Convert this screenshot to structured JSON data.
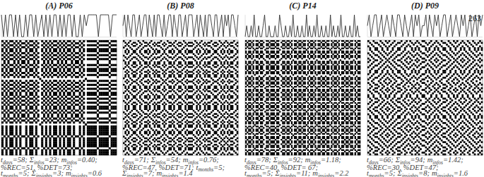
{
  "chart_data": [
    {
      "type": "recurrence",
      "title": "(A) P06",
      "ylim": [
        0,
        2
      ],
      "tick_labels": false,
      "color": "#000000",
      "values": [
        2,
        0,
        2,
        0,
        2,
        2,
        0,
        2,
        0,
        2,
        0,
        0,
        2,
        0,
        2,
        2,
        0,
        2,
        0,
        1,
        2,
        0,
        2,
        0,
        2,
        0,
        2,
        2,
        0,
        2,
        0,
        2,
        0,
        2,
        2,
        0,
        2,
        0,
        0,
        2,
        0,
        2,
        1,
        2,
        2,
        2,
        2,
        2,
        0,
        2,
        2,
        2,
        2,
        2,
        0,
        2,
        2,
        2
      ],
      "stats": [
        [
          {
            "symbol": "t",
            "sub": "days",
            "op": "=",
            "value": 58,
            "end": ";"
          },
          {
            "symbol": "Σ",
            "sub": "infos",
            "op": "=",
            "value": 23,
            "end": ";"
          },
          {
            "symbol": "m",
            "sub": "infos",
            "op": "=",
            "value": 0.4,
            "label": "0.40",
            "end": ";"
          }
        ],
        [
          {
            "symbol": "%REC",
            "op": "=",
            "value": 51,
            "end": ","
          },
          {
            "symbol": "%DET",
            "op": "=",
            "value": 73,
            "end": ";"
          }
        ],
        [
          {
            "symbol": "t",
            "sub": "months",
            "op": "=",
            "value": 5,
            "end": ";"
          },
          {
            "symbol": "Σ",
            "sub": "insights",
            "op": "=",
            "value": 3,
            "end": ";"
          },
          {
            "symbol": "m",
            "sub": "insights",
            "op": "=",
            "value": 0.6
          }
        ]
      ]
    },
    {
      "type": "recurrence",
      "title": "(B) P08",
      "ylim": [
        0,
        2
      ],
      "tick_labels": false,
      "color": "#000000",
      "values": [
        1,
        2,
        0,
        2,
        1,
        0,
        2,
        2,
        0,
        1,
        2,
        0,
        1,
        2,
        2,
        0,
        2,
        1,
        0,
        2,
        0,
        2,
        2,
        1,
        0,
        2,
        0,
        1,
        2,
        2,
        0,
        2,
        1,
        0,
        2,
        2,
        0,
        1,
        2,
        0,
        2,
        2,
        2,
        0,
        1,
        2,
        0,
        2,
        1,
        0,
        2,
        0,
        2,
        2,
        1,
        0,
        2,
        2,
        0,
        1,
        2,
        0,
        2,
        1,
        2,
        0,
        2,
        2,
        1,
        0,
        2
      ],
      "stats": [
        [
          {
            "symbol": "t",
            "sub": "days",
            "op": "=",
            "value": 71,
            "end": ";"
          },
          {
            "symbol": "Σ",
            "sub": "infos",
            "op": "=",
            "value": 54,
            "end": ";"
          },
          {
            "symbol": "m",
            "sub": "infos",
            "op": "=",
            "value": 0.76,
            "end": ";"
          }
        ],
        [
          {
            "symbol": "%REC",
            "op": "=",
            "value": 47,
            "end": ","
          },
          {
            "symbol": "%DET",
            "op": "=",
            "value": 71,
            "end": ";"
          },
          {
            "symbol": "t",
            "sub": "months",
            "op": "=",
            "value": 5,
            "end": ";"
          }
        ],
        [
          {
            "symbol": "Σ",
            "sub": "insights",
            "op": "=",
            "value": 7,
            "end": ";"
          },
          {
            "symbol": "m",
            "sub": "insights",
            "op": "=",
            "value": 1.4
          }
        ]
      ]
    },
    {
      "type": "recurrence",
      "title": "(C) P14",
      "ylim": [
        0,
        2
      ],
      "tick_labels": false,
      "color": "#000000",
      "values": [
        0,
        1,
        0,
        0,
        1,
        0,
        2,
        0,
        0,
        1,
        0,
        0,
        1,
        2,
        0,
        0,
        1,
        0,
        0,
        0,
        1,
        0,
        0,
        2,
        1,
        0,
        0,
        1,
        0,
        0,
        1,
        0,
        2,
        0,
        0,
        1,
        0,
        0,
        1,
        0,
        0,
        2,
        0,
        1,
        0,
        0,
        1,
        0,
        2,
        0,
        0,
        1,
        0,
        0,
        1,
        0,
        0,
        2,
        0,
        1,
        0,
        0,
        1,
        0,
        2,
        0,
        0,
        1,
        0,
        0,
        1,
        0,
        0,
        2,
        0,
        1,
        0,
        0
      ],
      "stats": [
        [
          {
            "symbol": "t",
            "sub": "days",
            "op": "=",
            "value": 78,
            "end": ";"
          },
          {
            "symbol": "Σ",
            "sub": "infos",
            "op": "=",
            "value": 92,
            "end": ";"
          },
          {
            "symbol": "m",
            "sub": "infos",
            "op": "=",
            "value": 1.18,
            "end": ";"
          }
        ],
        [
          {
            "symbol": "%REC",
            "op": "=",
            "value": 40,
            "end": ","
          },
          {
            "symbol": "%DET",
            "op": "= ",
            "value": 67,
            "end": ";"
          }
        ],
        [
          {
            "symbol": "t",
            "sub": "months",
            "op": "=",
            "value": 5,
            "end": ";"
          },
          {
            "symbol": "Σ",
            "sub": "insights",
            "op": "=",
            "value": 11,
            "end": ";"
          },
          {
            "symbol": "m",
            "sub": "insights",
            "op": "=",
            "value": 2.2
          }
        ]
      ]
    },
    {
      "type": "recurrence",
      "title": "(D) P09",
      "ylim": [
        0,
        2
      ],
      "tick_labels": false,
      "color": "#000000",
      "values": [
        1,
        2,
        0,
        1,
        2,
        2,
        0,
        1,
        2,
        0,
        1,
        2,
        1,
        0,
        2,
        1,
        0,
        2,
        2,
        1,
        0,
        2,
        1,
        0,
        1,
        2,
        0,
        2,
        1,
        2,
        0,
        1,
        1,
        2,
        0,
        2,
        1,
        0,
        2,
        1,
        2,
        0,
        1,
        2,
        2,
        0,
        1,
        2,
        0,
        1,
        2,
        1,
        0,
        2,
        1,
        2,
        0,
        1,
        2,
        0,
        1,
        2,
        0,
        2,
        1,
        2
      ],
      "stats": [
        [
          {
            "symbol": "t",
            "sub": "days",
            "op": "=",
            "value": 66,
            "end": ";"
          },
          {
            "symbol": "Σ",
            "sub": "infos",
            "op": "=",
            "value": 94,
            "end": ";"
          },
          {
            "symbol": "m",
            "sub": "infos",
            "op": "=",
            "value": 1.42,
            "end": ";"
          }
        ],
        [
          {
            "symbol": "%REC",
            "op": "=",
            "value": 30,
            "end": ","
          },
          {
            "symbol": "%DET",
            "op": "=",
            "value": 47,
            "end": ";"
          }
        ],
        [
          {
            "symbol": "t",
            "sub": "months",
            "op": "=",
            "value": 5,
            "end": ";"
          },
          {
            "symbol": "Σ",
            "sub": "insights",
            "op": "=",
            "value": 8,
            "end": ";"
          },
          {
            "symbol": "m",
            "sub": "insights",
            "op": "=",
            "value": 1.6
          }
        ]
      ]
    }
  ],
  "page_number": 263
}
